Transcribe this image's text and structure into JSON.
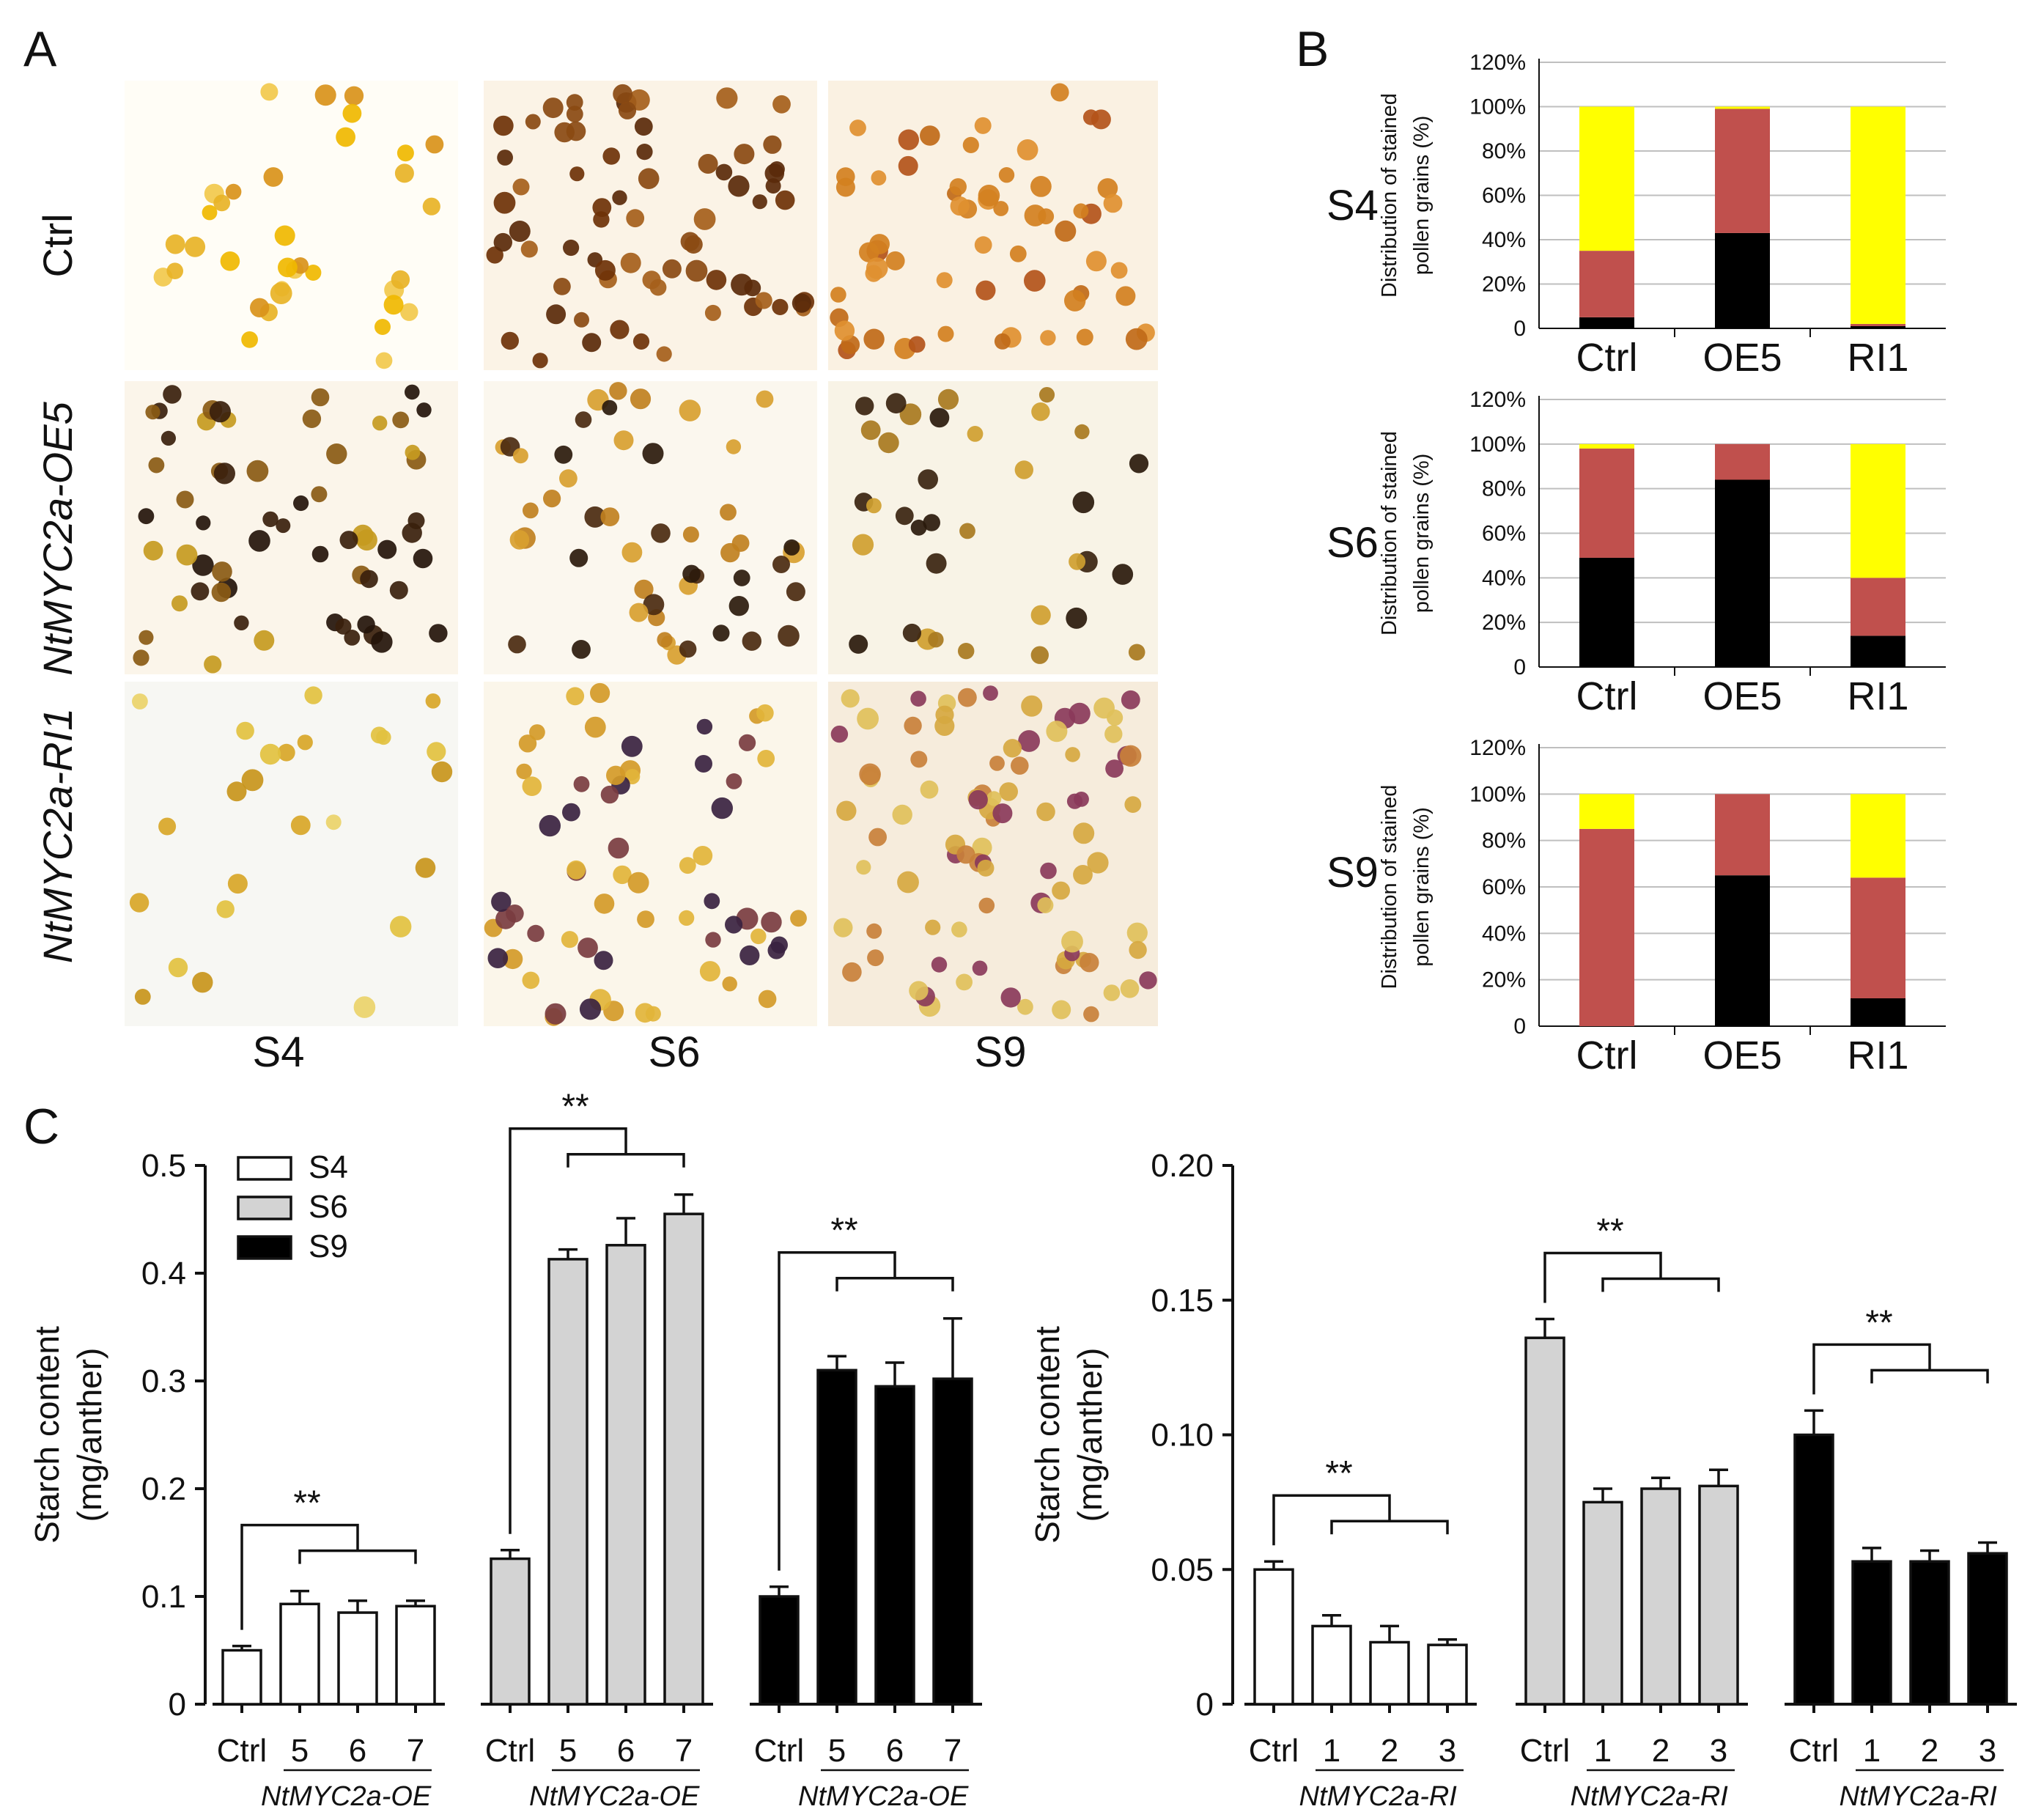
{
  "panels": {
    "a": "A",
    "b": "B",
    "c": "C"
  },
  "panel_a": {
    "rows": [
      "Ctrl",
      "NtMYC2a-OE5",
      "NtMYC2a-RI1"
    ],
    "cols": [
      "S4",
      "S6",
      "S9"
    ]
  },
  "colors": {
    "black": "#000000",
    "red": "#c0504d",
    "yellow": "#ffff00",
    "white": "#ffffff",
    "gray": "#d3d3d3",
    "axis": "#111111",
    "grid": "#bfbfbf"
  },
  "chart_data": [
    {
      "id": "B-S4",
      "type": "bar",
      "stacked": true,
      "stage": "S4",
      "ylabel": "Distribution of stained pollen grains (%)",
      "ylabel_lines": [
        "Distribution of stained",
        "pollen grains (%)"
      ],
      "ylim": [
        0,
        120
      ],
      "yticks": [
        "0",
        "20%",
        "40%",
        "60%",
        "80%",
        "100%",
        "120%"
      ],
      "categories": [
        "Ctrl",
        "OE5",
        "RI1"
      ],
      "series": [
        {
          "name": "black",
          "values": [
            5,
            43,
            1
          ]
        },
        {
          "name": "red",
          "values": [
            30,
            56,
            1
          ]
        },
        {
          "name": "yellow",
          "values": [
            65,
            1,
            98
          ]
        }
      ]
    },
    {
      "id": "B-S6",
      "type": "bar",
      "stacked": true,
      "stage": "S6",
      "ylabel": "Distribution of stained pollen grains (%)",
      "ylabel_lines": [
        "Distribution of stained",
        "pollen grains (%)"
      ],
      "ylim": [
        0,
        120
      ],
      "yticks": [
        "0",
        "20%",
        "40%",
        "60%",
        "80%",
        "100%",
        "120%"
      ],
      "categories": [
        "Ctrl",
        "OE5",
        "RI1"
      ],
      "series": [
        {
          "name": "black",
          "values": [
            49,
            84,
            14
          ]
        },
        {
          "name": "red",
          "values": [
            49,
            16,
            26
          ]
        },
        {
          "name": "yellow",
          "values": [
            2,
            0,
            60
          ]
        }
      ]
    },
    {
      "id": "B-S9",
      "type": "bar",
      "stacked": true,
      "stage": "S9",
      "ylabel": "Distribution of stained pollen grains (%)",
      "ylabel_lines": [
        "Distribution of stained",
        "pollen grains (%)"
      ],
      "ylim": [
        0,
        120
      ],
      "yticks": [
        "0",
        "20%",
        "40%",
        "60%",
        "80%",
        "100%",
        "120%"
      ],
      "categories": [
        "Ctrl",
        "OE5",
        "RI1"
      ],
      "series": [
        {
          "name": "black",
          "values": [
            0,
            65,
            12
          ]
        },
        {
          "name": "red",
          "values": [
            85,
            35,
            52
          ]
        },
        {
          "name": "yellow",
          "values": [
            15,
            0,
            36
          ]
        }
      ]
    },
    {
      "id": "C-OE",
      "type": "bar",
      "title": "",
      "ylabel": "Starch content (mg/anther)",
      "ylabel_lines": [
        "Starch content",
        "(mg/anther)"
      ],
      "ylim": [
        0,
        0.5
      ],
      "yticks": [
        "0",
        "0.1",
        "0.2",
        "0.3",
        "0.4",
        "0.5"
      ],
      "legend": [
        "S4",
        "S6",
        "S9"
      ],
      "significance": "**",
      "groups": [
        {
          "stage": "S4",
          "line_label": "NtMYC2a-OE",
          "categories": [
            "Ctrl",
            "5",
            "6",
            "7"
          ],
          "values": [
            0.05,
            0.093,
            0.085,
            0.091
          ],
          "errors": [
            0.004,
            0.012,
            0.011,
            0.005
          ]
        },
        {
          "stage": "S6",
          "line_label": "NtMYC2a-OE",
          "categories": [
            "Ctrl",
            "5",
            "6",
            "7"
          ],
          "values": [
            0.135,
            0.413,
            0.426,
            0.455
          ],
          "errors": [
            0.008,
            0.009,
            0.025,
            0.018
          ]
        },
        {
          "stage": "S9",
          "line_label": "NtMYC2a-OE",
          "categories": [
            "Ctrl",
            "5",
            "6",
            "7"
          ],
          "values": [
            0.1,
            0.31,
            0.295,
            0.302
          ],
          "errors": [
            0.009,
            0.013,
            0.022,
            0.056
          ]
        }
      ]
    },
    {
      "id": "C-RI",
      "type": "bar",
      "title": "",
      "ylabel": "Starch content (mg/anther)",
      "ylabel_lines": [
        "Starch content",
        "(mg/anther)"
      ],
      "ylim": [
        0,
        0.2
      ],
      "yticks": [
        "0",
        "0.05",
        "0.10",
        "0.15",
        "0.20"
      ],
      "significance": "**",
      "groups": [
        {
          "stage": "S4",
          "line_label": "NtMYC2a-RI",
          "categories": [
            "Ctrl",
            "1",
            "2",
            "3"
          ],
          "values": [
            0.05,
            0.029,
            0.023,
            0.022
          ],
          "errors": [
            0.003,
            0.004,
            0.006,
            0.002
          ]
        },
        {
          "stage": "S6",
          "line_label": "NtMYC2a-RI",
          "categories": [
            "Ctrl",
            "1",
            "2",
            "3"
          ],
          "values": [
            0.136,
            0.075,
            0.08,
            0.081
          ],
          "errors": [
            0.007,
            0.005,
            0.004,
            0.006
          ]
        },
        {
          "stage": "S9",
          "line_label": "NtMYC2a-RI",
          "categories": [
            "Ctrl",
            "1",
            "2",
            "3"
          ],
          "values": [
            0.1,
            0.053,
            0.053,
            0.056
          ],
          "errors": [
            0.009,
            0.005,
            0.004,
            0.004
          ]
        }
      ]
    }
  ]
}
